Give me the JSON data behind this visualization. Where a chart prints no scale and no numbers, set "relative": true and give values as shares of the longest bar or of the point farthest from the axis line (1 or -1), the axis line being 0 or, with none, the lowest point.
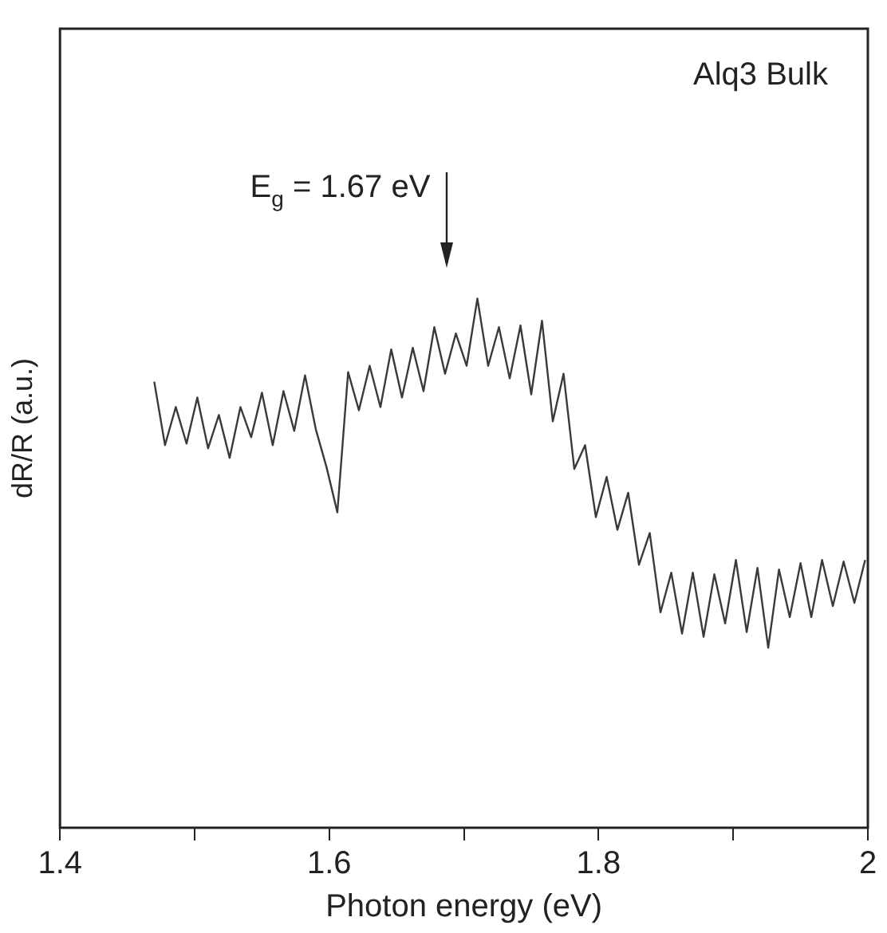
{
  "chart_data": {
    "type": "line",
    "relative": true,
    "xlabel": "Photon energy (eV)",
    "ylabel": "dR/R (a.u.)",
    "xlim": [
      1.4,
      2.0
    ],
    "xticks": [
      1.4,
      {
        "value": 1.5,
        "label": null
      },
      1.6,
      {
        "value": 1.7,
        "label": null
      },
      1.8,
      {
        "value": 1.9,
        "label": null
      },
      {
        "value": 2.0,
        "label": "2"
      }
    ],
    "grid": false,
    "legend": false,
    "marker": "none",
    "line_style": "solid",
    "annotations": [
      "Alq3 Bulk",
      "E$_{g}$ = 1.67 eV"
    ],
    "series": [
      {
        "color": "#3a3a3a",
        "x": [
          1.47,
          1.478,
          1.486,
          1.494,
          1.502,
          1.51,
          1.518,
          1.526,
          1.534,
          1.542,
          1.55,
          1.558,
          1.566,
          1.574,
          1.582,
          1.59,
          1.598,
          1.606,
          1.614,
          1.622,
          1.63,
          1.638,
          1.646,
          1.654,
          1.662,
          1.67,
          1.678,
          1.686,
          1.694,
          1.702,
          1.71,
          1.718,
          1.726,
          1.734,
          1.742,
          1.75,
          1.758,
          1.766,
          1.774,
          1.782,
          1.79,
          1.798,
          1.806,
          1.814,
          1.822,
          1.83,
          1.838,
          1.846,
          1.854,
          1.862,
          1.87,
          1.878,
          1.886,
          1.894,
          1.902,
          1.91,
          1.918,
          1.926,
          1.934,
          1.942,
          1.95,
          1.958,
          1.966,
          1.974,
          1.982,
          1.99,
          1.998
        ],
        "values": [
          0.843,
          0.723,
          0.795,
          0.726,
          0.813,
          0.717,
          0.78,
          0.699,
          0.795,
          0.738,
          0.822,
          0.723,
          0.825,
          0.75,
          0.855,
          0.753,
          0.681,
          0.596,
          0.861,
          0.789,
          0.873,
          0.795,
          0.904,
          0.813,
          0.907,
          0.825,
          0.946,
          0.858,
          0.934,
          0.873,
          1.0,
          0.873,
          0.946,
          0.849,
          0.949,
          0.819,
          0.958,
          0.768,
          0.858,
          0.678,
          0.723,
          0.587,
          0.663,
          0.563,
          0.633,
          0.497,
          0.557,
          0.407,
          0.482,
          0.367,
          0.482,
          0.361,
          0.479,
          0.386,
          0.506,
          0.37,
          0.491,
          0.34,
          0.488,
          0.398,
          0.5,
          0.398,
          0.506,
          0.419,
          0.503,
          0.425,
          0.506
        ]
      }
    ]
  }
}
